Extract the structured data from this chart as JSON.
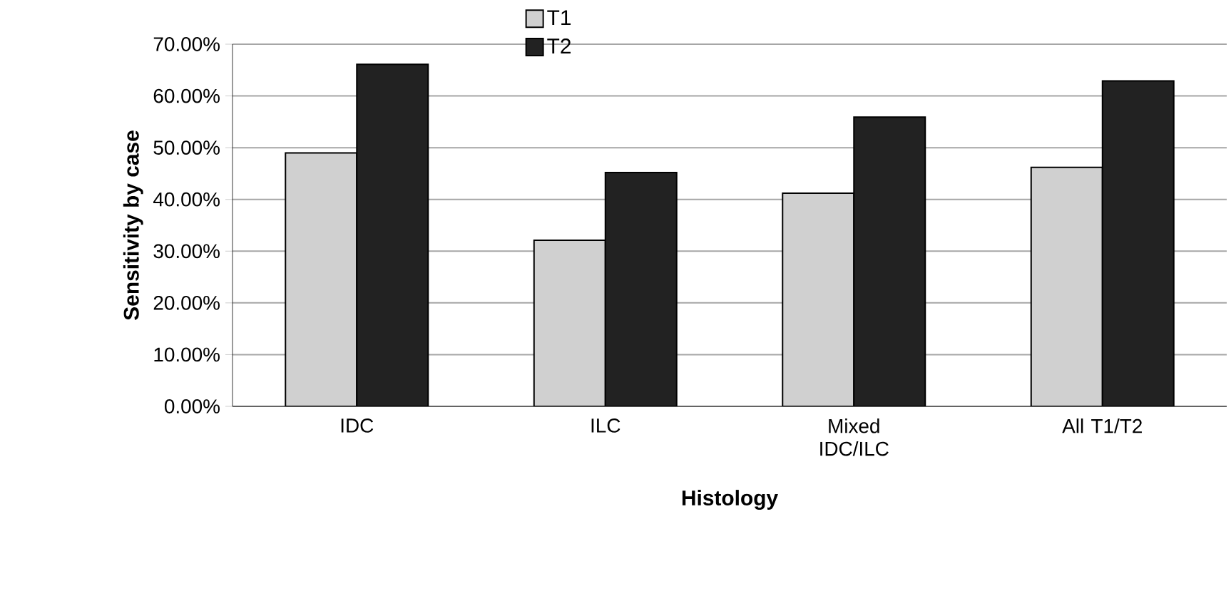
{
  "chart_data": {
    "type": "bar",
    "xlabel": "Histology",
    "ylabel": "Sensitivity by case",
    "categories": [
      "IDC",
      "ILC",
      "Mixed IDC/ILC",
      "All T1/T2"
    ],
    "series": [
      {
        "name": "T1",
        "color": "#d0d0d0",
        "values": [
          49,
          32.1,
          41.2,
          46.2
        ]
      },
      {
        "name": "T2",
        "color": "#222222",
        "values": [
          66.1,
          45.2,
          55.9,
          62.9
        ]
      }
    ],
    "ylim": [
      0,
      70
    ],
    "yticks": [
      {
        "value": 0,
        "label": "0.00%"
      },
      {
        "value": 10,
        "label": "10.00%"
      },
      {
        "value": 20,
        "label": "20.00%"
      },
      {
        "value": 30,
        "label": "30.00%"
      },
      {
        "value": 40,
        "label": "40.00%"
      },
      {
        "value": 50,
        "label": "50.00%"
      },
      {
        "value": 60,
        "label": "60.00%"
      },
      {
        "value": 70,
        "label": "70.00%"
      }
    ],
    "grid": "y",
    "legend": "top"
  }
}
